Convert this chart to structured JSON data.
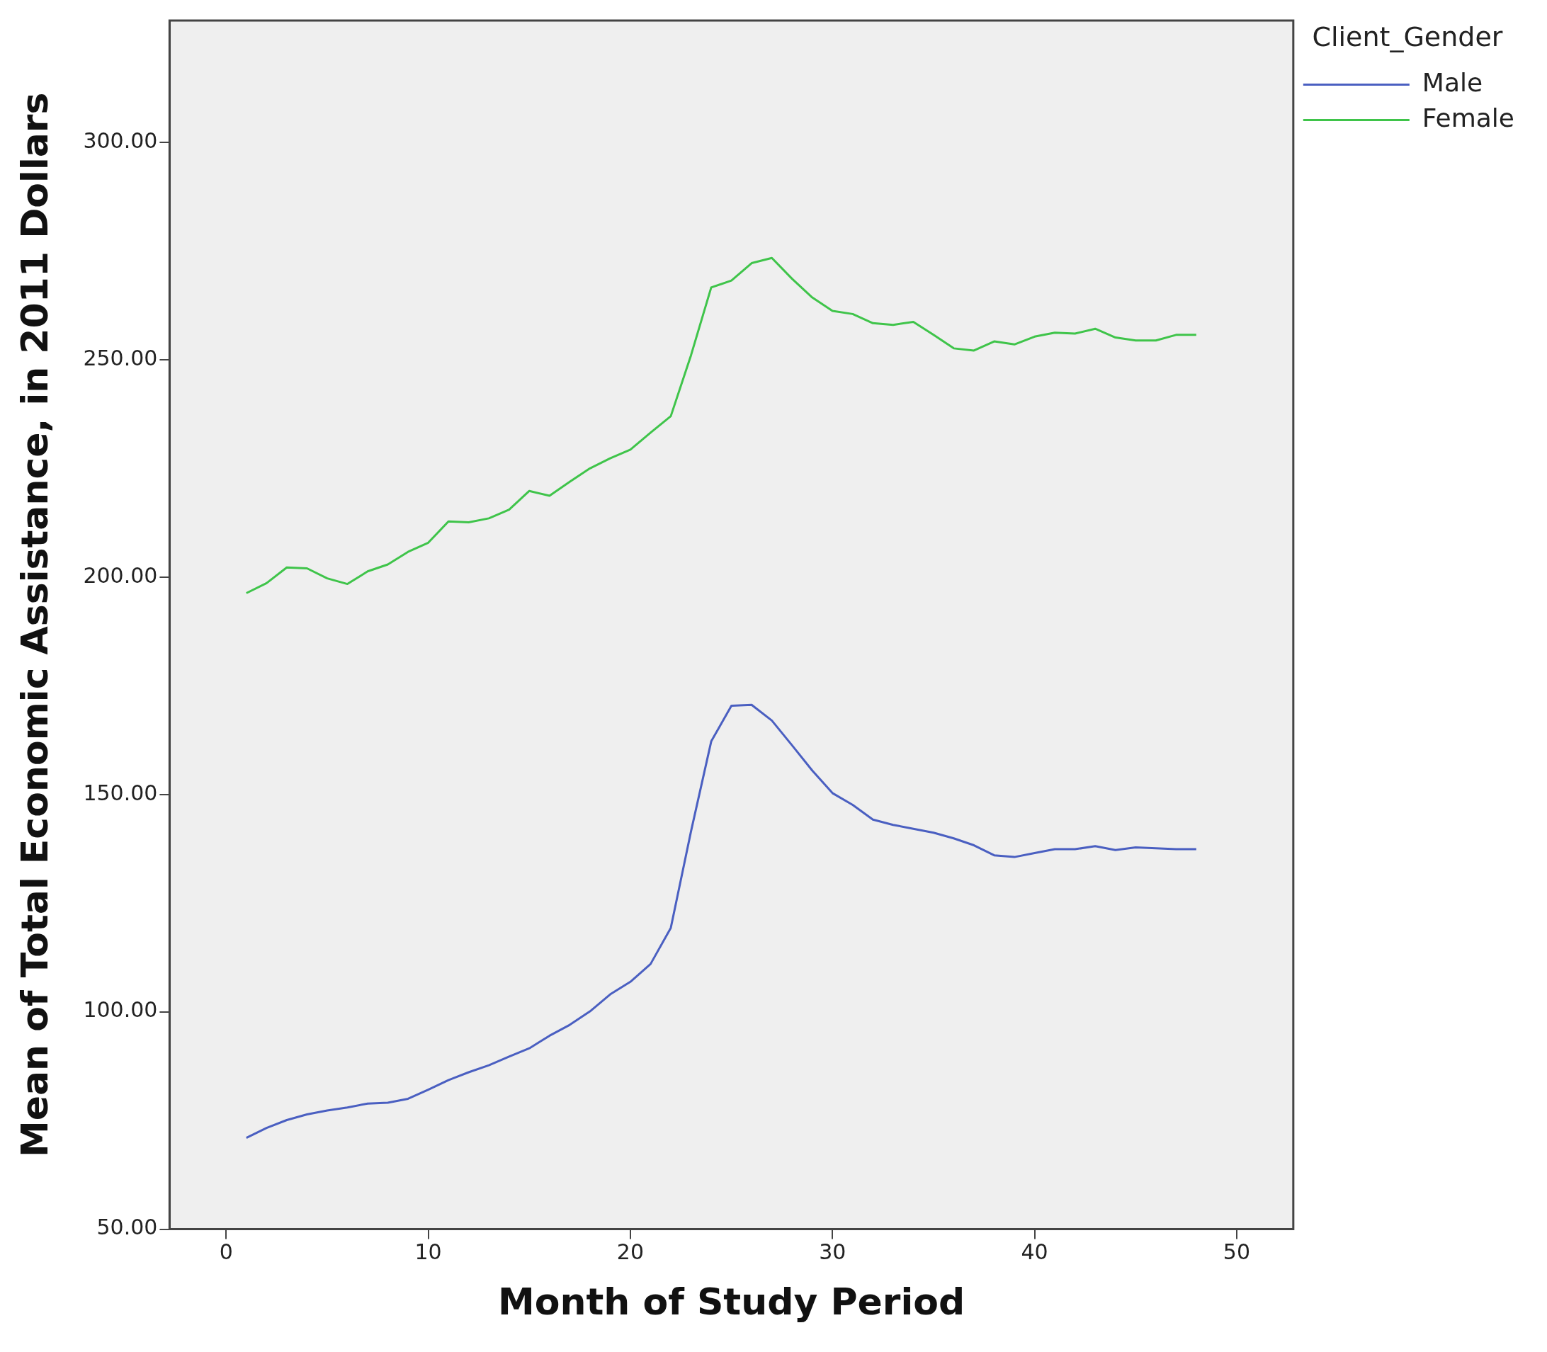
{
  "chart_data": {
    "type": "line",
    "xlabel": "Month of Study Period",
    "ylabel": "Mean of Total Economic Assistance, in 2011 Dollars",
    "legend_title": "Client_Gender",
    "legend": "top right",
    "grid": false,
    "marker": "none",
    "line_style": "solid",
    "x": [
      1,
      2,
      3,
      4,
      5,
      6,
      7,
      8,
      9,
      10,
      11,
      12,
      13,
      14,
      15,
      16,
      17,
      18,
      19,
      20,
      21,
      22,
      23,
      24,
      25,
      26,
      27,
      28,
      29,
      30,
      31,
      32,
      33,
      34,
      35,
      36,
      37,
      38,
      39,
      40,
      41,
      42,
      43,
      44,
      45,
      46,
      47,
      48
    ],
    "xlim": [
      -2.8,
      52.8
    ],
    "xticks": [
      0,
      10,
      20,
      30,
      40,
      50
    ],
    "ylim": [
      50,
      328
    ],
    "yticks": [
      {
        "value": 50,
        "label": "50.00"
      },
      {
        "value": 100,
        "label": "100.00"
      },
      {
        "value": 150,
        "label": "150.00"
      },
      {
        "value": 200,
        "label": "200.00"
      },
      {
        "value": 250,
        "label": "250.00"
      },
      {
        "value": 300,
        "label": "300.00"
      }
    ],
    "series": [
      {
        "name": "Male",
        "color": "#4a5fc1",
        "values": [
          71,
          73.3,
          75.1,
          76.4,
          77.3,
          78,
          78.9,
          79.1,
          80,
          82.1,
          84.3,
          86.1,
          87.7,
          89.7,
          91.6,
          94.5,
          97,
          100.1,
          104,
          106.9,
          111,
          119.3,
          141.5,
          162.2,
          170.4,
          170.6,
          167,
          161.3,
          155.5,
          150.3,
          147.6,
          144.2,
          143,
          142.1,
          141.2,
          139.9,
          138.3,
          136,
          135.6,
          136.5,
          137.4,
          137.4,
          138.1,
          137.2,
          137.8,
          137.6,
          137.4,
          137.4
        ]
      },
      {
        "name": "Female",
        "color": "#3fc44a",
        "values": [
          196.3,
          198.6,
          202.2,
          202,
          199.7,
          198.4,
          201.3,
          202.9,
          205.8,
          207.9,
          212.8,
          212.6,
          213.5,
          215.5,
          219.8,
          218.7,
          221.9,
          225,
          227.3,
          229.3,
          233.2,
          237,
          251,
          266.6,
          268.2,
          272.2,
          273.4,
          268.6,
          264.3,
          261.2,
          260.5,
          258.4,
          258,
          258.7,
          255.7,
          252.6,
          252.1,
          254.2,
          253.5,
          255.3,
          256.2,
          256,
          257.1,
          255.1,
          254.4,
          254.4,
          255.7,
          255.7
        ]
      }
    ]
  }
}
